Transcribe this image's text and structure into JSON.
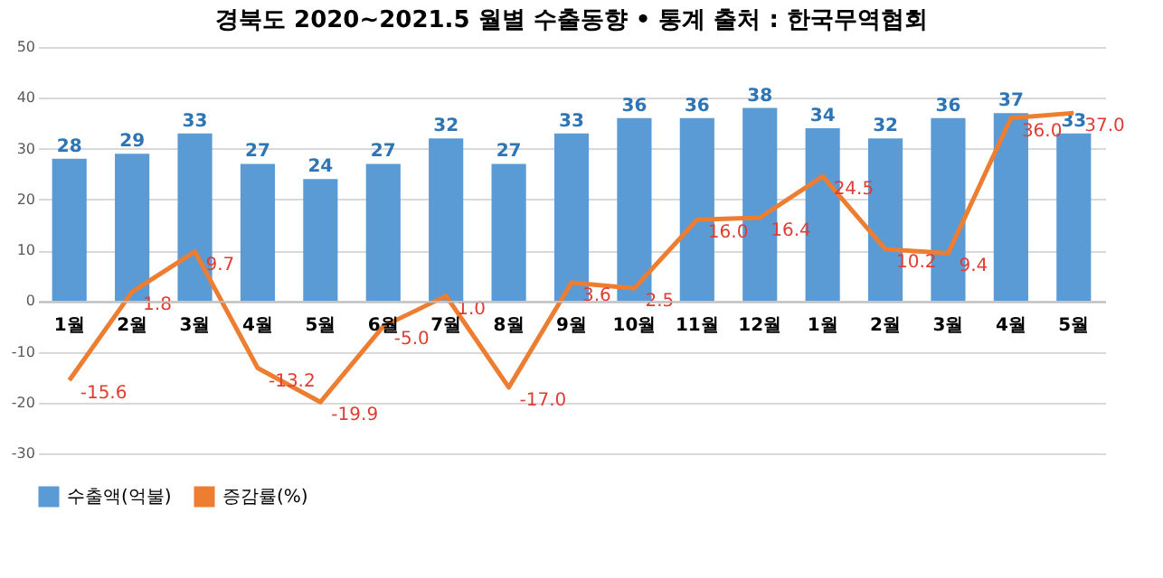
{
  "chart_data": {
    "type": "bar",
    "title": "경북도 2020~2021.5 월별 수출동향",
    "annotations": [
      "• 통계 출처 : 한국무역협회"
    ],
    "categories": [
      "1월",
      "2월",
      "3월",
      "4월",
      "5월",
      "6월",
      "7월",
      "8월",
      "9월",
      "10월",
      "11월",
      "12월",
      "1월",
      "2월",
      "3월",
      "4월",
      "5월"
    ],
    "series": [
      {
        "name": "수출액(억불)",
        "color": "#5b9bd5",
        "values": [
          28,
          29,
          33,
          27,
          24,
          27,
          32,
          27,
          33,
          36,
          36,
          38,
          34,
          32,
          36,
          37,
          33
        ],
        "value_labels": [
          "28",
          "29",
          "33",
          "27",
          "24",
          "27",
          "32",
          "27",
          "33",
          "36",
          "36",
          "38",
          "34",
          "32",
          "36",
          "37",
          "33"
        ]
      },
      {
        "name": "증감률(%)",
        "type": "line",
        "color": "#ed7d31",
        "values": [
          -15.6,
          1.8,
          9.7,
          -13.2,
          -19.9,
          -5.0,
          1.0,
          -17.0,
          3.6,
          2.5,
          16.0,
          16.4,
          24.5,
          10.2,
          9.4,
          36.0,
          37.0
        ],
        "value_labels": [
          "-15.6",
          "1.8",
          "9.7",
          "-13.2",
          "-19.9",
          "-5.0",
          "1.0",
          "-17.0",
          "3.6",
          "2.5",
          "16.0",
          "16.4",
          "24.5",
          "10.2",
          "9.4",
          "36.0",
          "37.0"
        ]
      }
    ],
    "ylim": [
      -30,
      50
    ],
    "yticks": [
      -30,
      -20,
      -10,
      0,
      10,
      20,
      30,
      40,
      50
    ],
    "grid": "y",
    "legend": "bottom"
  }
}
